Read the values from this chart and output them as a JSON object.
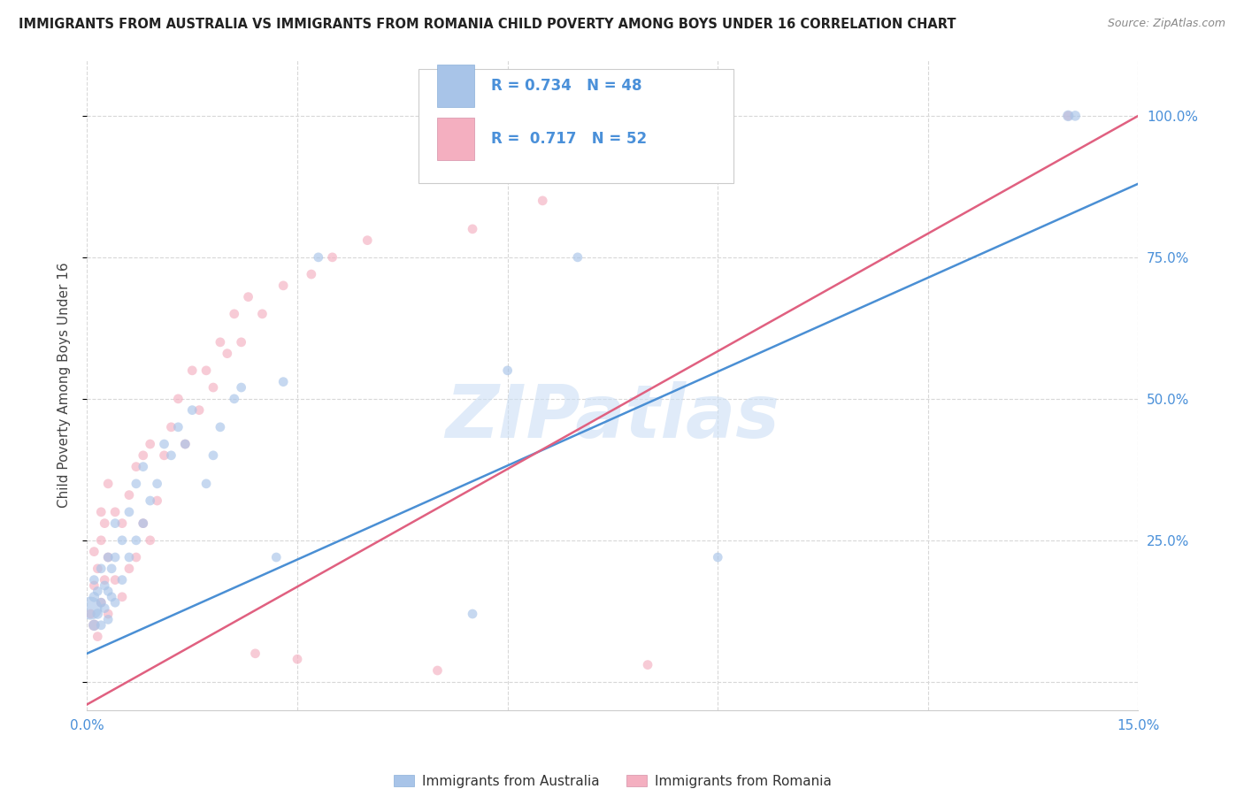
{
  "title": "IMMIGRANTS FROM AUSTRALIA VS IMMIGRANTS FROM ROMANIA CHILD POVERTY AMONG BOYS UNDER 16 CORRELATION CHART",
  "source": "Source: ZipAtlas.com",
  "ylabel": "Child Poverty Among Boys Under 16",
  "watermark": "ZIPatlas",
  "xmin": 0.0,
  "xmax": 0.15,
  "ymin": -0.05,
  "ymax": 1.1,
  "yticks": [
    0.0,
    0.25,
    0.5,
    0.75,
    1.0
  ],
  "ytick_labels": [
    "",
    "25.0%",
    "50.0%",
    "75.0%",
    "100.0%"
  ],
  "xticks": [
    0.0,
    0.03,
    0.06,
    0.09,
    0.12,
    0.15
  ],
  "xtick_labels": [
    "0.0%",
    "",
    "",
    "",
    "",
    "15.0%"
  ],
  "australia_color": "#a8c4e8",
  "romania_color": "#f4afc0",
  "aus_line_color": "#4a8fd4",
  "rom_line_color": "#e06080",
  "australia_R": 0.734,
  "australia_N": 48,
  "romania_R": 0.717,
  "romania_N": 52,
  "aus_line_x0": 0.0,
  "aus_line_y0": 0.05,
  "aus_line_x1": 0.15,
  "aus_line_y1": 0.88,
  "rom_line_x0": 0.0,
  "rom_line_y0": -0.04,
  "rom_line_x1": 0.15,
  "rom_line_y1": 1.0,
  "aus_scatter_x": [
    0.0005,
    0.001,
    0.001,
    0.001,
    0.0015,
    0.0015,
    0.002,
    0.002,
    0.002,
    0.0025,
    0.0025,
    0.003,
    0.003,
    0.003,
    0.0035,
    0.0035,
    0.004,
    0.004,
    0.004,
    0.005,
    0.005,
    0.006,
    0.006,
    0.007,
    0.007,
    0.008,
    0.008,
    0.009,
    0.01,
    0.011,
    0.012,
    0.013,
    0.014,
    0.015,
    0.017,
    0.018,
    0.019,
    0.021,
    0.022,
    0.027,
    0.028,
    0.033,
    0.055,
    0.06,
    0.07,
    0.09,
    0.14,
    0.141
  ],
  "aus_scatter_y": [
    0.13,
    0.1,
    0.15,
    0.18,
    0.12,
    0.16,
    0.1,
    0.14,
    0.2,
    0.13,
    0.17,
    0.11,
    0.16,
    0.22,
    0.15,
    0.2,
    0.14,
    0.22,
    0.28,
    0.18,
    0.25,
    0.22,
    0.3,
    0.25,
    0.35,
    0.28,
    0.38,
    0.32,
    0.35,
    0.42,
    0.4,
    0.45,
    0.42,
    0.48,
    0.35,
    0.4,
    0.45,
    0.5,
    0.52,
    0.22,
    0.53,
    0.75,
    0.12,
    0.55,
    0.75,
    0.22,
    1.0,
    1.0
  ],
  "aus_scatter_size": [
    350,
    80,
    70,
    60,
    70,
    60,
    60,
    60,
    60,
    60,
    60,
    60,
    60,
    60,
    60,
    60,
    60,
    60,
    60,
    60,
    60,
    60,
    60,
    60,
    60,
    60,
    60,
    60,
    60,
    60,
    60,
    60,
    60,
    60,
    60,
    60,
    60,
    60,
    60,
    60,
    60,
    60,
    60,
    60,
    60,
    60,
    80,
    70
  ],
  "rom_scatter_x": [
    0.0005,
    0.001,
    0.001,
    0.001,
    0.0015,
    0.0015,
    0.002,
    0.002,
    0.002,
    0.0025,
    0.0025,
    0.003,
    0.003,
    0.003,
    0.004,
    0.004,
    0.005,
    0.005,
    0.006,
    0.006,
    0.007,
    0.007,
    0.008,
    0.008,
    0.009,
    0.009,
    0.01,
    0.011,
    0.012,
    0.013,
    0.014,
    0.015,
    0.016,
    0.017,
    0.018,
    0.019,
    0.02,
    0.021,
    0.022,
    0.023,
    0.024,
    0.025,
    0.028,
    0.03,
    0.032,
    0.035,
    0.04,
    0.05,
    0.055,
    0.065,
    0.08,
    0.14
  ],
  "rom_scatter_y": [
    0.12,
    0.1,
    0.17,
    0.23,
    0.08,
    0.2,
    0.14,
    0.25,
    0.3,
    0.18,
    0.28,
    0.12,
    0.22,
    0.35,
    0.18,
    0.3,
    0.15,
    0.28,
    0.2,
    0.33,
    0.22,
    0.38,
    0.28,
    0.4,
    0.25,
    0.42,
    0.32,
    0.4,
    0.45,
    0.5,
    0.42,
    0.55,
    0.48,
    0.55,
    0.52,
    0.6,
    0.58,
    0.65,
    0.6,
    0.68,
    0.05,
    0.65,
    0.7,
    0.04,
    0.72,
    0.75,
    0.78,
    0.02,
    0.8,
    0.85,
    0.03,
    1.0
  ],
  "rom_scatter_size": [
    60,
    80,
    60,
    60,
    60,
    60,
    60,
    60,
    60,
    60,
    60,
    60,
    60,
    60,
    60,
    60,
    60,
    60,
    60,
    60,
    60,
    60,
    60,
    60,
    60,
    60,
    60,
    60,
    60,
    60,
    60,
    60,
    60,
    60,
    60,
    60,
    60,
    60,
    60,
    60,
    60,
    60,
    60,
    60,
    60,
    60,
    60,
    60,
    60,
    60,
    60,
    60
  ],
  "axis_color": "#4a90d9",
  "title_color": "#222222",
  "background_color": "#ffffff",
  "grid_color": "#d8d8d8"
}
